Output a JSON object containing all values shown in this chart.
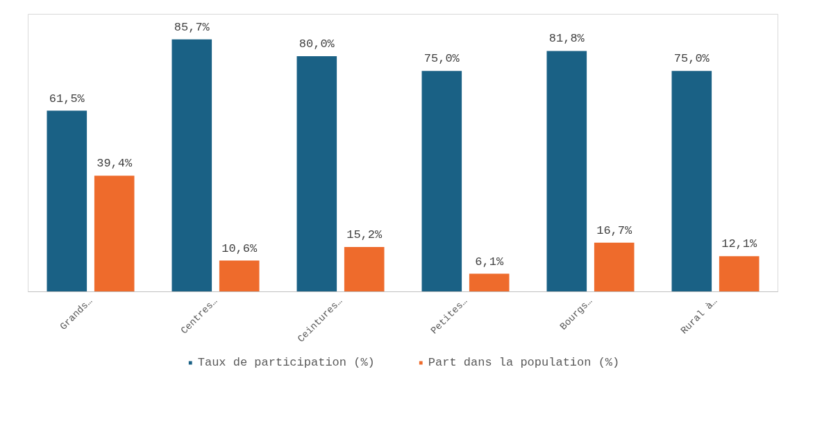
{
  "chart_data": {
    "type": "bar",
    "categories": [
      "Grands…",
      "Centres…",
      "Ceintures…",
      "Petites…",
      "Bourgs…",
      "Rural à…"
    ],
    "series": [
      {
        "name": "Taux de participation (%)",
        "color": "#1a6185",
        "values": [
          61.5,
          85.7,
          80.0,
          75.0,
          81.8,
          75.0
        ],
        "value_labels": [
          "61,5%",
          "85,7%",
          "80,0%",
          "75,0%",
          "81,8%",
          "75,0%"
        ]
      },
      {
        "name": "Part dans la population (%)",
        "color": "#ee6b2c",
        "values": [
          39.4,
          10.6,
          15.2,
          6.1,
          16.7,
          12.1
        ],
        "value_labels": [
          "39,4%",
          "10,6%",
          "15,2%",
          "6,1%",
          "16,7%",
          "12,1%"
        ]
      }
    ],
    "legend": "bottom"
  }
}
